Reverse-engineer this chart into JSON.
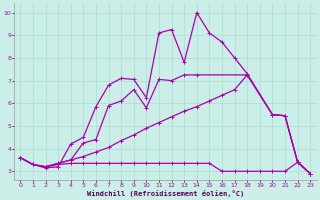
{
  "xlabel": "Windchill (Refroidissement éolien,°C)",
  "background_color": "#cceee8",
  "grid_color": "#aaddcc",
  "line_color": "#aa00aa",
  "xlim": [
    -0.5,
    23.5
  ],
  "ylim": [
    2.6,
    10.4
  ],
  "xticks": [
    0,
    1,
    2,
    3,
    4,
    5,
    6,
    7,
    8,
    9,
    10,
    11,
    12,
    13,
    14,
    15,
    16,
    17,
    18,
    19,
    20,
    21,
    22,
    23
  ],
  "yticks": [
    3,
    4,
    5,
    6,
    7,
    8,
    9,
    10
  ],
  "lines": [
    {
      "x": [
        0,
        1,
        2,
        3,
        4,
        5,
        6,
        7,
        8,
        9,
        10,
        11,
        12,
        13,
        14,
        15,
        16,
        17,
        18,
        20,
        21,
        22,
        23
      ],
      "y": [
        3.6,
        3.3,
        3.15,
        3.2,
        4.2,
        4.5,
        5.85,
        6.8,
        7.1,
        7.05,
        6.25,
        9.1,
        9.25,
        7.8,
        10.0,
        9.1,
        8.7,
        8.0,
        7.3,
        5.5,
        5.45,
        3.4,
        2.9
      ]
    },
    {
      "x": [
        0,
        1,
        2,
        3,
        4,
        5,
        6,
        7,
        8,
        9,
        10,
        11,
        12,
        13,
        14,
        18,
        20,
        21,
        22,
        23
      ],
      "y": [
        3.6,
        3.3,
        3.2,
        3.35,
        3.5,
        4.25,
        4.4,
        5.9,
        6.1,
        6.6,
        5.8,
        7.05,
        7.0,
        7.25,
        7.25,
        7.25,
        5.5,
        5.45,
        3.4,
        2.9
      ]
    },
    {
      "x": [
        0,
        1,
        2,
        3,
        4,
        5,
        6,
        7,
        8,
        9,
        10,
        11,
        12,
        13,
        14,
        15,
        16,
        17,
        18,
        19,
        20,
        21,
        22,
        23
      ],
      "y": [
        3.6,
        3.3,
        3.2,
        3.3,
        3.35,
        3.35,
        3.35,
        3.35,
        3.35,
        3.35,
        3.35,
        3.35,
        3.35,
        3.35,
        3.35,
        3.35,
        3.0,
        3.0,
        3.0,
        3.0,
        3.0,
        3.0,
        3.4,
        2.9
      ]
    },
    {
      "x": [
        0,
        1,
        2,
        3,
        4,
        5,
        6,
        7,
        8,
        9,
        10,
        11,
        12,
        13,
        14,
        15,
        16,
        17,
        18,
        20,
        21,
        22,
        23
      ],
      "y": [
        3.6,
        3.3,
        3.2,
        3.35,
        3.5,
        3.65,
        3.85,
        4.05,
        4.35,
        4.6,
        4.9,
        5.15,
        5.4,
        5.65,
        5.85,
        6.1,
        6.35,
        6.6,
        7.25,
        5.5,
        5.45,
        3.4,
        2.9
      ]
    }
  ]
}
